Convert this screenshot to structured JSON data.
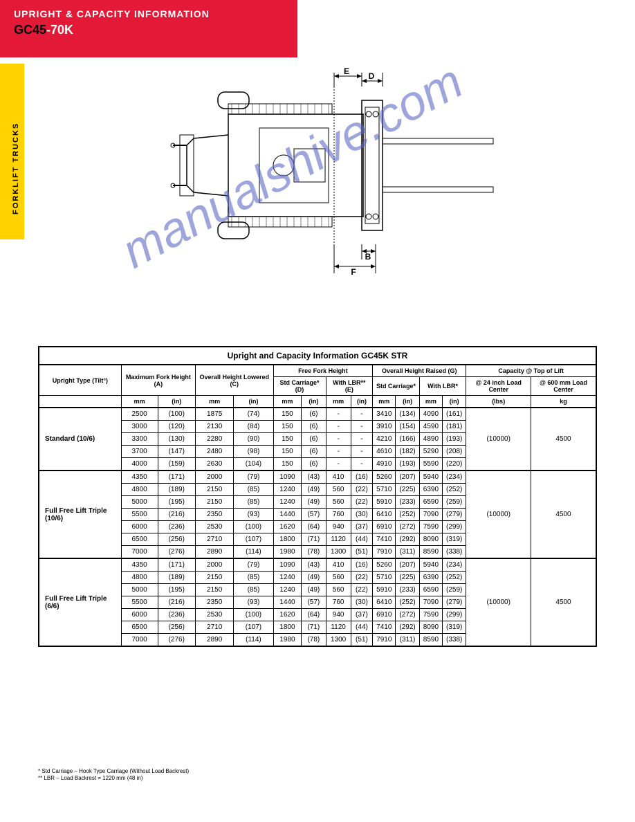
{
  "header": {
    "top_text": "UPRIGHT & CAPACITY INFORMATION",
    "title_gc": "GC45",
    "title_range": "-70K",
    "top_text_color_a": "#ffffff"
  },
  "sidebar": {
    "label": "FORKLIFT TRUCKS"
  },
  "dimension_labels": {
    "E": "E",
    "D": "D",
    "B": "B",
    "F": "F"
  },
  "table": {
    "title": "Upright and Capacity Information GC45K STR",
    "header": {
      "upright_type": "Upright Type (Tilt°)",
      "max_fork_height_a": "Maximum Fork Height (A)",
      "overall_height_lowered_c": "Overall Height Lowered (C)",
      "free_fork_height": "Free Fork Height",
      "overall_height_raised_g": "Overall Height Raised (G)",
      "capacity_at_top": "Capacity @ Top of Lift",
      "std_carriage_d": "Std Carriage* (D)",
      "with_lbr_e": "With LBR** (E)",
      "std_carriage": "Std Carriage*",
      "with_lbr": "With LBR*",
      "load_center_24": "@ 24 inch Load Center",
      "load_center_600": "@ 600 mm Load Center",
      "mm": "mm",
      "in": "(in)",
      "kg": "kg",
      "lbs": "(lbs)"
    },
    "sections": [
      {
        "name": "Standard (10/6)",
        "rows": [
          {
            "a_mm": "2500",
            "a_in": "(100)",
            "c_mm": "1875",
            "c_in": "(74)",
            "d_mm": "150",
            "d_in": "(6)",
            "e_m": "-",
            "e_i": "-",
            "gs_m": "3410",
            "gs_i": "(134)",
            "gl_m": "4090",
            "gl_i": "(161)"
          },
          {
            "a_mm": "3000",
            "a_in": "(120)",
            "c_mm": "2130",
            "c_in": "(84)",
            "d_mm": "150",
            "d_in": "(6)",
            "e_m": "-",
            "e_i": "-",
            "gs_m": "3910",
            "gs_i": "(154)",
            "gl_m": "4590",
            "gl_i": "(181)"
          },
          {
            "a_mm": "3300",
            "a_in": "(130)",
            "c_mm": "2280",
            "c_in": "(90)",
            "d_mm": "150",
            "d_in": "(6)",
            "e_m": "-",
            "e_i": "-",
            "gs_m": "4210",
            "gs_i": "(166)",
            "gl_m": "4890",
            "gl_i": "(193)"
          },
          {
            "a_mm": "3700",
            "a_in": "(147)",
            "c_mm": "2480",
            "c_in": "(98)",
            "d_mm": "150",
            "d_in": "(6)",
            "e_m": "-",
            "e_i": "-",
            "gs_m": "4610",
            "gs_i": "(182)",
            "gl_m": "5290",
            "gl_i": "(208)"
          },
          {
            "a_mm": "4000",
            "a_in": "(159)",
            "c_mm": "2630",
            "c_in": "(104)",
            "d_mm": "150",
            "d_in": "(6)",
            "e_m": "-",
            "e_i": "-",
            "gs_m": "4910",
            "gs_i": "(193)",
            "gl_m": "5590",
            "gl_i": "(220)"
          }
        ],
        "cap_kg": "4500",
        "cap_lbs": "(10000)"
      },
      {
        "name": "Full Free Lift Triple (10/6)",
        "rows": [
          {
            "a_mm": "4350",
            "a_in": "(171)",
            "c_mm": "2000",
            "c_in": "(79)",
            "d_mm": "1090",
            "d_in": "(43)",
            "e_m": "410",
            "e_i": "(16)",
            "gs_m": "5260",
            "gs_i": "(207)",
            "gl_m": "5940",
            "gl_i": "(234)"
          },
          {
            "a_mm": "4800",
            "a_in": "(189)",
            "c_mm": "2150",
            "c_in": "(85)",
            "d_mm": "1240",
            "d_in": "(49)",
            "e_m": "560",
            "e_i": "(22)",
            "gs_m": "5710",
            "gs_i": "(225)",
            "gl_m": "6390",
            "gl_i": "(252)"
          },
          {
            "a_mm": "5000",
            "a_in": "(195)",
            "c_mm": "2150",
            "c_in": "(85)",
            "d_mm": "1240",
            "d_in": "(49)",
            "e_m": "560",
            "e_i": "(22)",
            "gs_m": "5910",
            "gs_i": "(233)",
            "gl_m": "6590",
            "gl_i": "(259)"
          },
          {
            "a_mm": "5500",
            "a_in": "(216)",
            "c_mm": "2350",
            "c_in": "(93)",
            "d_mm": "1440",
            "d_in": "(57)",
            "e_m": "760",
            "e_i": "(30)",
            "gs_m": "6410",
            "gs_i": "(252)",
            "gl_m": "7090",
            "gl_i": "(279)"
          },
          {
            "a_mm": "6000",
            "a_in": "(236)",
            "c_mm": "2530",
            "c_in": "(100)",
            "d_mm": "1620",
            "d_in": "(64)",
            "e_m": "940",
            "e_i": "(37)",
            "gs_m": "6910",
            "gs_i": "(272)",
            "gl_m": "7590",
            "gl_i": "(299)"
          },
          {
            "a_mm": "6500",
            "a_in": "(256)",
            "c_mm": "2710",
            "c_in": "(107)",
            "d_mm": "1800",
            "d_in": "(71)",
            "e_m": "1120",
            "e_i": "(44)",
            "gs_m": "7410",
            "gs_i": "(292)",
            "gl_m": "8090",
            "gl_i": "(319)"
          },
          {
            "a_mm": "7000",
            "a_in": "(276)",
            "c_mm": "2890",
            "c_in": "(114)",
            "d_mm": "1980",
            "d_in": "(78)",
            "e_m": "1300",
            "e_i": "(51)",
            "gs_m": "7910",
            "gs_i": "(311)",
            "gl_m": "8590",
            "gl_i": "(338)"
          }
        ],
        "cap_kg": "4500",
        "cap_lbs": "(10000)"
      },
      {
        "name": "Full Free Lift Triple (6/6)",
        "rows": [
          {
            "a_mm": "4350",
            "a_in": "(171)",
            "c_mm": "2000",
            "c_in": "(79)",
            "d_mm": "1090",
            "d_in": "(43)",
            "e_m": "410",
            "e_i": "(16)",
            "gs_m": "5260",
            "gs_i": "(207)",
            "gl_m": "5940",
            "gl_i": "(234)"
          },
          {
            "a_mm": "4800",
            "a_in": "(189)",
            "c_mm": "2150",
            "c_in": "(85)",
            "d_mm": "1240",
            "d_in": "(49)",
            "e_m": "560",
            "e_i": "(22)",
            "gs_m": "5710",
            "gs_i": "(225)",
            "gl_m": "6390",
            "gl_i": "(252)"
          },
          {
            "a_mm": "5000",
            "a_in": "(195)",
            "c_mm": "2150",
            "c_in": "(85)",
            "d_mm": "1240",
            "d_in": "(49)",
            "e_m": "560",
            "e_i": "(22)",
            "gs_m": "5910",
            "gs_i": "(233)",
            "gl_m": "6590",
            "gl_i": "(259)"
          },
          {
            "a_mm": "5500",
            "a_in": "(216)",
            "c_mm": "2350",
            "c_in": "(93)",
            "d_mm": "1440",
            "d_in": "(57)",
            "e_m": "760",
            "e_i": "(30)",
            "gs_m": "6410",
            "gs_i": "(252)",
            "gl_m": "7090",
            "gl_i": "(279)"
          },
          {
            "a_mm": "6000",
            "a_in": "(236)",
            "c_mm": "2530",
            "c_in": "(100)",
            "d_mm": "1620",
            "d_in": "(64)",
            "e_m": "940",
            "e_i": "(37)",
            "gs_m": "6910",
            "gs_i": "(272)",
            "gl_m": "7590",
            "gl_i": "(299)"
          },
          {
            "a_mm": "6500",
            "a_in": "(256)",
            "c_mm": "2710",
            "c_in": "(107)",
            "d_mm": "1800",
            "d_in": "(71)",
            "e_m": "1120",
            "e_i": "(44)",
            "gs_m": "7410",
            "gs_i": "(292)",
            "gl_m": "8090",
            "gl_i": "(319)"
          },
          {
            "a_mm": "7000",
            "a_in": "(276)",
            "c_mm": "2890",
            "c_in": "(114)",
            "d_mm": "1980",
            "d_in": "(78)",
            "e_m": "1300",
            "e_i": "(51)",
            "gs_m": "7910",
            "gs_i": "(311)",
            "gl_m": "8590",
            "gl_i": "(338)"
          }
        ],
        "cap_kg": "4500",
        "cap_lbs": "(10000)"
      }
    ]
  },
  "footnotes": {
    "line1": "* Std Carriage – Hook Type Carriage (Without Load Backrest)",
    "line2": "** LBR – Load Backrest = 1220 mm (48 in)"
  },
  "styling": {
    "red": "#e31937",
    "yellow": "#ffd200",
    "white": "#ffffff",
    "black": "#000000",
    "watermark_color": "rgba(91,105,196,0.6)",
    "body_width": 918,
    "body_height": 1188
  },
  "watermark": {
    "text": "manualshive.com"
  }
}
